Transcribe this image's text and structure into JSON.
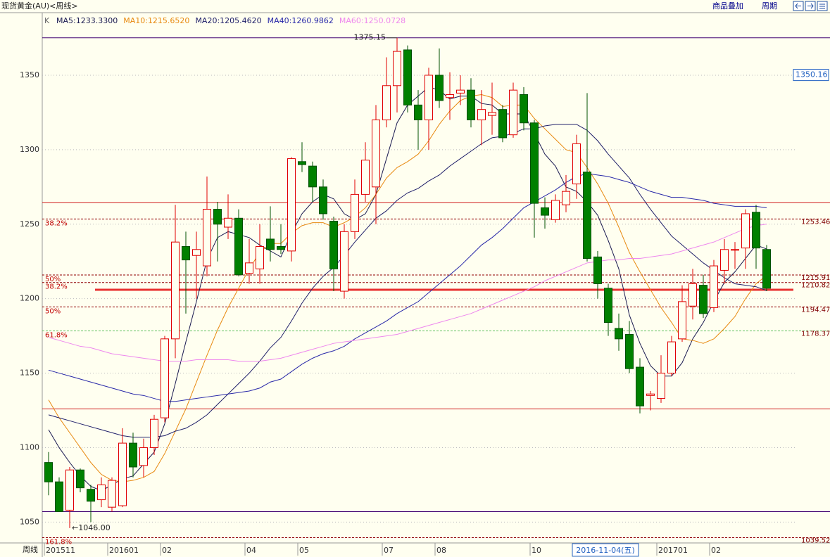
{
  "chart_data": {
    "type": "candlestick",
    "title": "现货黄金(AU)<周线>",
    "toolbar": [
      "商品叠加",
      "周期"
    ],
    "period_label": "周线",
    "legend_prefix": "K",
    "categories": [
      "201511",
      null,
      null,
      null,
      null,
      null,
      "201601",
      null,
      null,
      null,
      null,
      "02",
      null,
      null,
      null,
      null,
      null,
      null,
      null,
      "04",
      null,
      null,
      null,
      null,
      "05",
      null,
      null,
      null,
      null,
      null,
      null,
      null,
      "07",
      null,
      null,
      null,
      null,
      "08",
      null,
      null,
      null,
      null,
      null,
      null,
      null,
      null,
      "10",
      null,
      null,
      null,
      null,
      null,
      "2016-11-04(五)",
      null,
      null,
      null,
      null,
      null,
      "201701",
      null,
      null,
      null,
      null,
      "02",
      null,
      null,
      null,
      null,
      null
    ],
    "cursor_category": 52,
    "open": [
      1090,
      1077,
      1058,
      1085,
      1072,
      1065,
      1060,
      1061,
      1103,
      1088,
      1100,
      1120,
      1173,
      1235,
      1229,
      1222,
      1260,
      1248,
      1254,
      1217,
      1220,
      1240,
      1235,
      1232,
      1292,
      1289,
      1275,
      1252,
      1205,
      1245,
      1270,
      1275,
      1320,
      1343,
      1367,
      1330,
      1320,
      1350,
      1335,
      1338,
      1340,
      1320,
      1323,
      1327,
      1310,
      1337,
      1318,
      1261,
      1253,
      1263,
      1277,
      1285,
      1228,
      1207,
      1180,
      1176,
      1154,
      1135,
      1133,
      1150,
      1173,
      1195,
      1209,
      1194,
      1219,
      1233,
      1234,
      1258,
      1233
    ],
    "high": [
      1097,
      1080,
      1087,
      1086,
      1075,
      1080,
      1080,
      1113,
      1110,
      1106,
      1122,
      1175,
      1263,
      1245,
      1245,
      1282,
      1265,
      1270,
      1260,
      1240,
      1250,
      1262,
      1250,
      1295,
      1305,
      1292,
      1280,
      1255,
      1250,
      1280,
      1305,
      1330,
      1362,
      1375.15,
      1370,
      1340,
      1355,
      1368,
      1352,
      1350,
      1348,
      1340,
      1345,
      1330,
      1345,
      1342,
      1320,
      1268,
      1270,
      1283,
      1310,
      1338,
      1232,
      1210,
      1190,
      1185,
      1160,
      1138,
      1162,
      1175,
      1209,
      1220,
      1216,
      1226,
      1240,
      1238,
      1260,
      1263,
      1236
    ],
    "low": [
      1068,
      1057,
      1046,
      1070,
      1050,
      1060,
      1057,
      1060,
      1080,
      1080,
      1095,
      1117,
      1160,
      1190,
      1200,
      1215,
      1225,
      1240,
      1215,
      1210,
      1210,
      1225,
      1230,
      1225,
      1285,
      1265,
      1253,
      1205,
      1200,
      1240,
      1265,
      1250,
      1315,
      1325,
      1325,
      1300,
      1300,
      1328,
      1320,
      1330,
      1315,
      1303,
      1310,
      1305,
      1308,
      1313,
      1241,
      1247,
      1251,
      1258,
      1267,
      1225,
      1200,
      1175,
      1165,
      1150,
      1123,
      1125,
      1130,
      1148,
      1171,
      1186,
      1187,
      1191,
      1210,
      1220,
      1220,
      1220,
      1205
    ],
    "close": [
      1077,
      1057,
      1085,
      1073,
      1064,
      1075,
      1078,
      1103,
      1087,
      1100,
      1119,
      1173,
      1238,
      1226,
      1233,
      1260,
      1250,
      1254,
      1216,
      1224,
      1235,
      1233,
      1233,
      1294,
      1290,
      1275,
      1257,
      1220,
      1245,
      1270,
      1293,
      1320,
      1343,
      1366,
      1330,
      1320,
      1350,
      1333,
      1337,
      1340,
      1320,
      1327,
      1325,
      1308,
      1340,
      1318,
      1264,
      1256,
      1266,
      1272,
      1304,
      1227,
      1210,
      1184,
      1173,
      1153,
      1128,
      1136,
      1150,
      1171,
      1198,
      1210,
      1190,
      1222,
      1233,
      1233,
      1257,
      1234,
      1207
    ],
    "up_color": "#e00000",
    "down_color": "#008000",
    "series": [
      {
        "name": "MA5:1233.3300",
        "color": "#1a1a50",
        "values": [
          1112,
          1100,
          1090,
          1081,
          1074,
          1071,
          1075,
          1079,
          1081,
          1089,
          1097,
          1116,
          1143,
          1171,
          1198,
          1226,
          1241,
          1245,
          1243,
          1241,
          1236,
          1232,
          1228,
          1244,
          1257,
          1265,
          1270,
          1267,
          1257,
          1253,
          1257,
          1270,
          1294,
          1318,
          1330,
          1336,
          1342,
          1340,
          1334,
          1336,
          1336,
          1331,
          1330,
          1324,
          1324,
          1324,
          1311,
          1297,
          1289,
          1275,
          1272,
          1265,
          1256,
          1239,
          1220,
          1189,
          1170,
          1155,
          1148,
          1148,
          1157,
          1173,
          1184,
          1198,
          1211,
          1218,
          1227,
          1236,
          1233.33
        ]
      },
      {
        "name": "MA10:1215.6520",
        "color": "#e88a10",
        "values": [
          1132,
          1120,
          1110,
          1100,
          1090,
          1082,
          1078,
          1077,
          1078,
          1080,
          1084,
          1096,
          1111,
          1126,
          1144,
          1162,
          1179,
          1194,
          1207,
          1220,
          1231,
          1237,
          1237,
          1244,
          1249,
          1251,
          1251,
          1248,
          1251,
          1255,
          1261,
          1270,
          1281,
          1288,
          1292,
          1297,
          1306,
          1317,
          1326,
          1333,
          1336,
          1337,
          1335,
          1329,
          1330,
          1330,
          1321,
          1314,
          1307,
          1300,
          1298,
          1288,
          1277,
          1264,
          1248,
          1231,
          1218,
          1206,
          1194,
          1184,
          1173,
          1172,
          1170,
          1173,
          1180,
          1188,
          1200,
          1210,
          1215.652
        ]
      },
      {
        "name": "MA20:1205.4620",
        "color": "#20206a",
        "values": [
          1122,
          1120,
          1118,
          1116,
          1114,
          1112,
          1110,
          1108,
          1107,
          1107,
          1107,
          1108,
          1111,
          1113,
          1117,
          1122,
          1129,
          1136,
          1143,
          1150,
          1158,
          1167,
          1174,
          1185,
          1197,
          1207,
          1215,
          1221,
          1229,
          1238,
          1246,
          1254,
          1259,
          1266,
          1271,
          1274,
          1279,
          1283,
          1289,
          1294,
          1299,
          1304,
          1308,
          1309,
          1311,
          1314,
          1314,
          1316,
          1317,
          1317,
          1317,
          1313,
          1306,
          1297,
          1289,
          1281,
          1270,
          1260,
          1251,
          1242,
          1236,
          1230,
          1224,
          1219,
          1214,
          1210,
          1209,
          1208,
          1205.462
        ]
      },
      {
        "name": "MA40:1260.9862",
        "color": "#2828a8",
        "values": [
          1152,
          1150,
          1148,
          1146,
          1144,
          1142,
          1140,
          1138,
          1136,
          1135,
          1133,
          1131,
          1131,
          1132,
          1133,
          1134,
          1135,
          1136,
          1137,
          1138,
          1140,
          1144,
          1146,
          1151,
          1156,
          1160,
          1163,
          1165,
          1168,
          1173,
          1177,
          1181,
          1185,
          1190,
          1194,
          1198,
          1204,
          1210,
          1216,
          1222,
          1229,
          1236,
          1241,
          1247,
          1254,
          1261,
          1265,
          1269,
          1273,
          1278,
          1282,
          1284,
          1283,
          1282,
          1280,
          1278,
          1275,
          1272,
          1270,
          1268,
          1268,
          1267,
          1266,
          1264,
          1263,
          1262,
          1262,
          1262,
          1260.9862
        ]
      },
      {
        "name": "MA60:1250.0728",
        "color": "#ee88ee",
        "values": [
          1174,
          1172,
          1170,
          1168,
          1167,
          1165,
          1163,
          1162,
          1161,
          1160,
          1159,
          1158,
          1158,
          1158,
          1159,
          1159,
          1159,
          1159,
          1158,
          1158,
          1158,
          1159,
          1160,
          1162,
          1164,
          1166,
          1168,
          1170,
          1171,
          1172,
          1173,
          1174,
          1175,
          1176,
          1178,
          1180,
          1182,
          1184,
          1186,
          1188,
          1190,
          1193,
          1196,
          1199,
          1202,
          1205,
          1208,
          1212,
          1215,
          1218,
          1221,
          1224,
          1225,
          1226,
          1226,
          1227,
          1227,
          1228,
          1229,
          1230,
          1232,
          1234,
          1236,
          1238,
          1241,
          1244,
          1247,
          1249,
          1250.0728
        ]
      }
    ],
    "ylim": [
      1036,
      1392
    ],
    "yticks": [
      1050,
      1100,
      1150,
      1200,
      1250,
      1300,
      1350
    ],
    "grid": true,
    "levels": [
      {
        "label": "38.2%",
        "value": 1253.46,
        "color": "#900000"
      },
      {
        "label": "50%",
        "value": 1215.91,
        "color": "#900000"
      },
      {
        "label": "38.2%",
        "value": 1210.82,
        "color": "#900000"
      },
      {
        "label": "50%",
        "value": 1194.47,
        "color": "#900000"
      },
      {
        "label": "61.8%",
        "value": 1178.37,
        "color": "#60c060"
      },
      {
        "label": "161.8%",
        "value": 1039.52,
        "color": "#900000"
      }
    ],
    "hlines": [
      {
        "value": 1375.15,
        "color": "#400070"
      },
      {
        "value": 1264.6,
        "color": "#d02020"
      },
      {
        "value": 1126,
        "color": "#d02020"
      },
      {
        "value": 1057,
        "color": "#400070"
      }
    ],
    "support_line": {
      "value": 1206,
      "color": "#e83030"
    },
    "annotations": [
      {
        "text": "1375.15",
        "value": 1375.15,
        "index": 33
      },
      {
        "text": "←1046.00",
        "value": 1046,
        "index": 2
      }
    ],
    "cursor_price": 1350.16
  }
}
